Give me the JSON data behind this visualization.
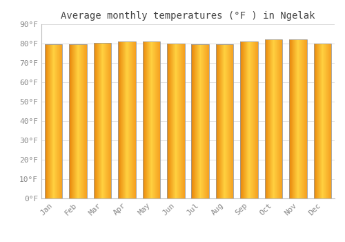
{
  "title": "Average monthly temperatures (°F ) in Ngelak",
  "months": [
    "Jan",
    "Feb",
    "Mar",
    "Apr",
    "May",
    "Jun",
    "Jul",
    "Aug",
    "Sep",
    "Oct",
    "Nov",
    "Dec"
  ],
  "values": [
    79.5,
    79.5,
    80.5,
    81.0,
    81.0,
    80.0,
    79.5,
    79.5,
    81.0,
    82.0,
    82.0,
    80.0
  ],
  "ylim": [
    0,
    90
  ],
  "yticks": [
    0,
    10,
    20,
    30,
    40,
    50,
    60,
    70,
    80,
    90
  ],
  "ytick_labels": [
    "0°F",
    "10°F",
    "20°F",
    "30°F",
    "40°F",
    "50°F",
    "60°F",
    "70°F",
    "80°F",
    "90°F"
  ],
  "bar_color_left": "#E8850A",
  "bar_color_center": "#FFD040",
  "bar_color_right": "#F5A020",
  "bar_edge_color": "#999999",
  "background_color": "#FFFFFF",
  "plot_bg_color": "#FFFFFF",
  "grid_color": "#DDDDDD",
  "title_color": "#444444",
  "tick_label_color": "#888888",
  "title_fontsize": 10,
  "tick_fontsize": 8,
  "bar_width": 0.72,
  "n_grad": 60
}
